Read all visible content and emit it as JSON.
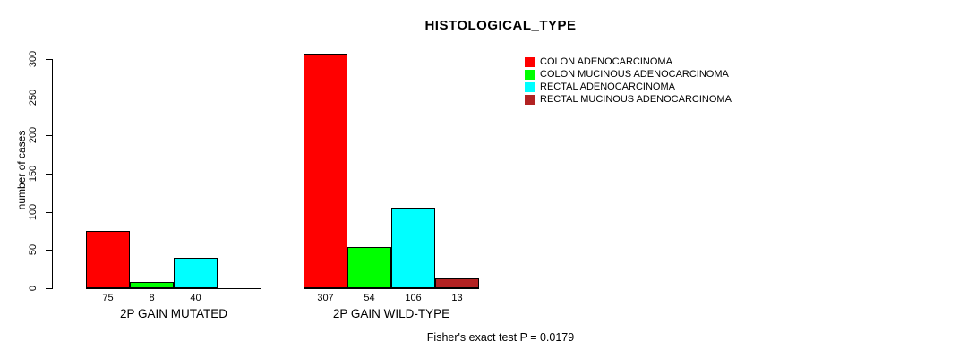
{
  "chart_data": {
    "type": "bar",
    "title": "HISTOLOGICAL_TYPE",
    "ylabel": "number of cases",
    "xlabel": "",
    "ylim": [
      0,
      300
    ],
    "yticks": [
      0,
      50,
      100,
      150,
      200,
      250,
      300
    ],
    "grid": false,
    "legend_position": "right",
    "bar_value_labels": true,
    "categories": [
      "2P GAIN MUTATED",
      "2P GAIN WILD-TYPE"
    ],
    "series": [
      {
        "name": "COLON ADENOCARCINOMA",
        "color": "#FF0000",
        "values": [
          75,
          307
        ]
      },
      {
        "name": "COLON MUCINOUS ADENOCARCINOMA",
        "color": "#00FF00",
        "values": [
          8,
          54
        ]
      },
      {
        "name": "RECTAL ADENOCARCINOMA",
        "color": "#00FFFF",
        "values": [
          40,
          106
        ]
      },
      {
        "name": "RECTAL MUCINOUS ADENOCARCINOMA",
        "color": "#B22222",
        "values": [
          0,
          13
        ]
      }
    ],
    "annotation": "Fisher's exact test P = 0.0179"
  }
}
